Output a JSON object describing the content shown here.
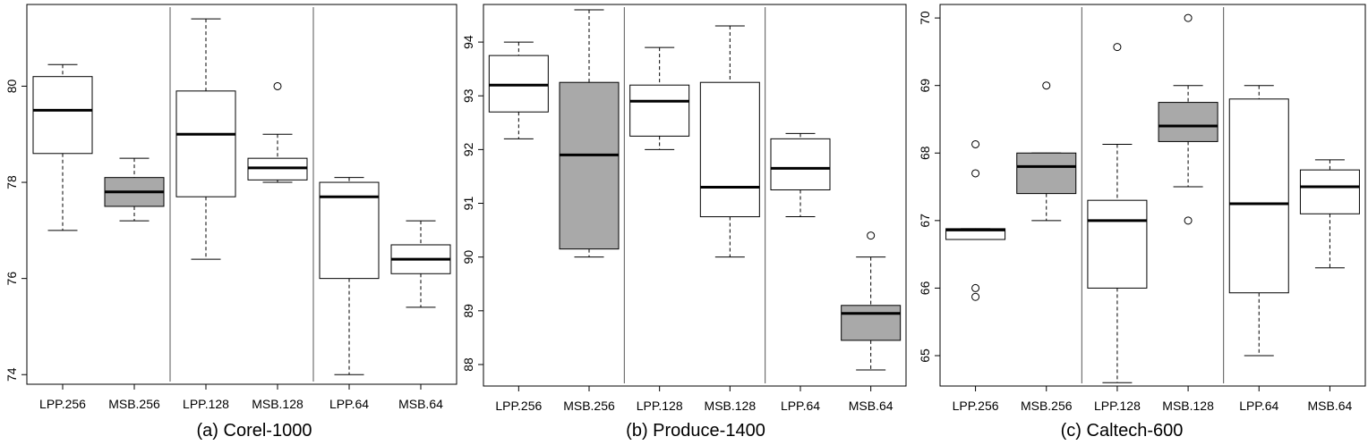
{
  "chart_data": [
    {
      "type": "box",
      "title": "(a) Corel-1000",
      "categories": [
        "LPP.256",
        "MSB.256",
        "LPP.128",
        "MSB.128",
        "LPP.64",
        "MSB.64"
      ],
      "ylim": [
        73.8,
        81.7
      ],
      "yticks": [
        74,
        76,
        78,
        80
      ],
      "grid": false,
      "group_separators_after": [
        2,
        4
      ],
      "boxes": [
        {
          "category": "LPP.256",
          "min": 77.0,
          "q1": 78.6,
          "median": 79.5,
          "q3": 80.2,
          "max": 80.45,
          "fill": "white",
          "outliers": []
        },
        {
          "category": "MSB.256",
          "min": 77.2,
          "q1": 77.5,
          "median": 77.8,
          "q3": 78.1,
          "max": 78.5,
          "fill": "gray",
          "outliers": []
        },
        {
          "category": "LPP.128",
          "min": 76.4,
          "q1": 77.7,
          "median": 79.0,
          "q3": 79.9,
          "max": 81.4,
          "fill": "white",
          "outliers": []
        },
        {
          "category": "MSB.128",
          "min": 78.0,
          "q1": 78.05,
          "median": 78.3,
          "q3": 78.5,
          "max": 79.0,
          "fill": "white",
          "outliers": [
            80.0
          ]
        },
        {
          "category": "LPP.64",
          "min": 74.0,
          "q1": 76.0,
          "median": 77.7,
          "q3": 78.0,
          "max": 78.1,
          "fill": "white",
          "outliers": []
        },
        {
          "category": "MSB.64",
          "min": 75.4,
          "q1": 76.1,
          "median": 76.4,
          "q3": 76.7,
          "max": 77.2,
          "fill": "white",
          "outliers": []
        }
      ]
    },
    {
      "type": "box",
      "title": "(b) Produce-1400",
      "categories": [
        "LPP.256",
        "MSB.256",
        "LPP.128",
        "MSB.128",
        "LPP.64",
        "MSB.64"
      ],
      "ylim": [
        87.6,
        94.7
      ],
      "yticks": [
        88,
        89,
        90,
        91,
        92,
        93,
        94
      ],
      "grid": false,
      "group_separators_after": [
        2,
        4
      ],
      "boxes": [
        {
          "category": "LPP.256",
          "min": 92.2,
          "q1": 92.7,
          "median": 93.2,
          "q3": 93.75,
          "max": 94.0,
          "fill": "white",
          "outliers": []
        },
        {
          "category": "MSB.256",
          "min": 90.0,
          "q1": 90.15,
          "median": 91.9,
          "q3": 93.25,
          "max": 94.6,
          "fill": "gray",
          "outliers": []
        },
        {
          "category": "LPP.128",
          "min": 92.0,
          "q1": 92.25,
          "median": 92.9,
          "q3": 93.2,
          "max": 93.9,
          "fill": "white",
          "outliers": []
        },
        {
          "category": "MSB.128",
          "min": 90.0,
          "q1": 90.75,
          "median": 91.3,
          "q3": 93.25,
          "max": 94.3,
          "fill": "white",
          "outliers": []
        },
        {
          "category": "LPP.64",
          "min": 90.75,
          "q1": 91.25,
          "median": 91.65,
          "q3": 92.2,
          "max": 92.3,
          "fill": "white",
          "outliers": []
        },
        {
          "category": "MSB.64",
          "min": 87.9,
          "q1": 88.45,
          "median": 88.95,
          "q3": 89.1,
          "max": 90.0,
          "fill": "gray",
          "outliers": [
            90.4
          ]
        }
      ]
    },
    {
      "type": "box",
      "title": "(c) Caltech-600",
      "categories": [
        "LPP.256",
        "MSB.256",
        "LPP.128",
        "MSB.128",
        "LPP.64",
        "MSB.64"
      ],
      "ylim": [
        64.55,
        70.2
      ],
      "yticks": [
        65,
        66,
        67,
        68,
        69,
        70
      ],
      "grid": false,
      "group_separators_after": [
        2,
        4
      ],
      "boxes": [
        {
          "category": "LPP.256",
          "min": 66.72,
          "q1": 66.72,
          "median": 66.86,
          "q3": 66.88,
          "max": 66.88,
          "fill": "white",
          "outliers": [
            65.87,
            66.0,
            67.7,
            68.13
          ]
        },
        {
          "category": "MSB.256",
          "min": 67.0,
          "q1": 67.4,
          "median": 67.8,
          "q3": 68.0,
          "max": 68.0,
          "fill": "gray",
          "outliers": [
            69.0
          ]
        },
        {
          "category": "LPP.128",
          "min": 64.6,
          "q1": 66.0,
          "median": 67.0,
          "q3": 67.3,
          "max": 68.13,
          "fill": "white",
          "outliers": [
            69.57
          ]
        },
        {
          "category": "MSB.128",
          "min": 67.5,
          "q1": 68.17,
          "median": 68.4,
          "q3": 68.75,
          "max": 69.0,
          "fill": "gray",
          "outliers": [
            67.0,
            70.0
          ]
        },
        {
          "category": "LPP.64",
          "min": 65.0,
          "q1": 65.93,
          "median": 67.25,
          "q3": 68.8,
          "max": 69.0,
          "fill": "white",
          "outliers": []
        },
        {
          "category": "MSB.64",
          "min": 66.3,
          "q1": 67.1,
          "median": 67.5,
          "q3": 67.75,
          "max": 67.9,
          "fill": "white",
          "outliers": []
        }
      ]
    }
  ],
  "colors": {
    "box_fill_white": "#ffffff",
    "box_fill_gray": "#a9a9a9",
    "stroke": "#000000",
    "separator": "#555555"
  }
}
